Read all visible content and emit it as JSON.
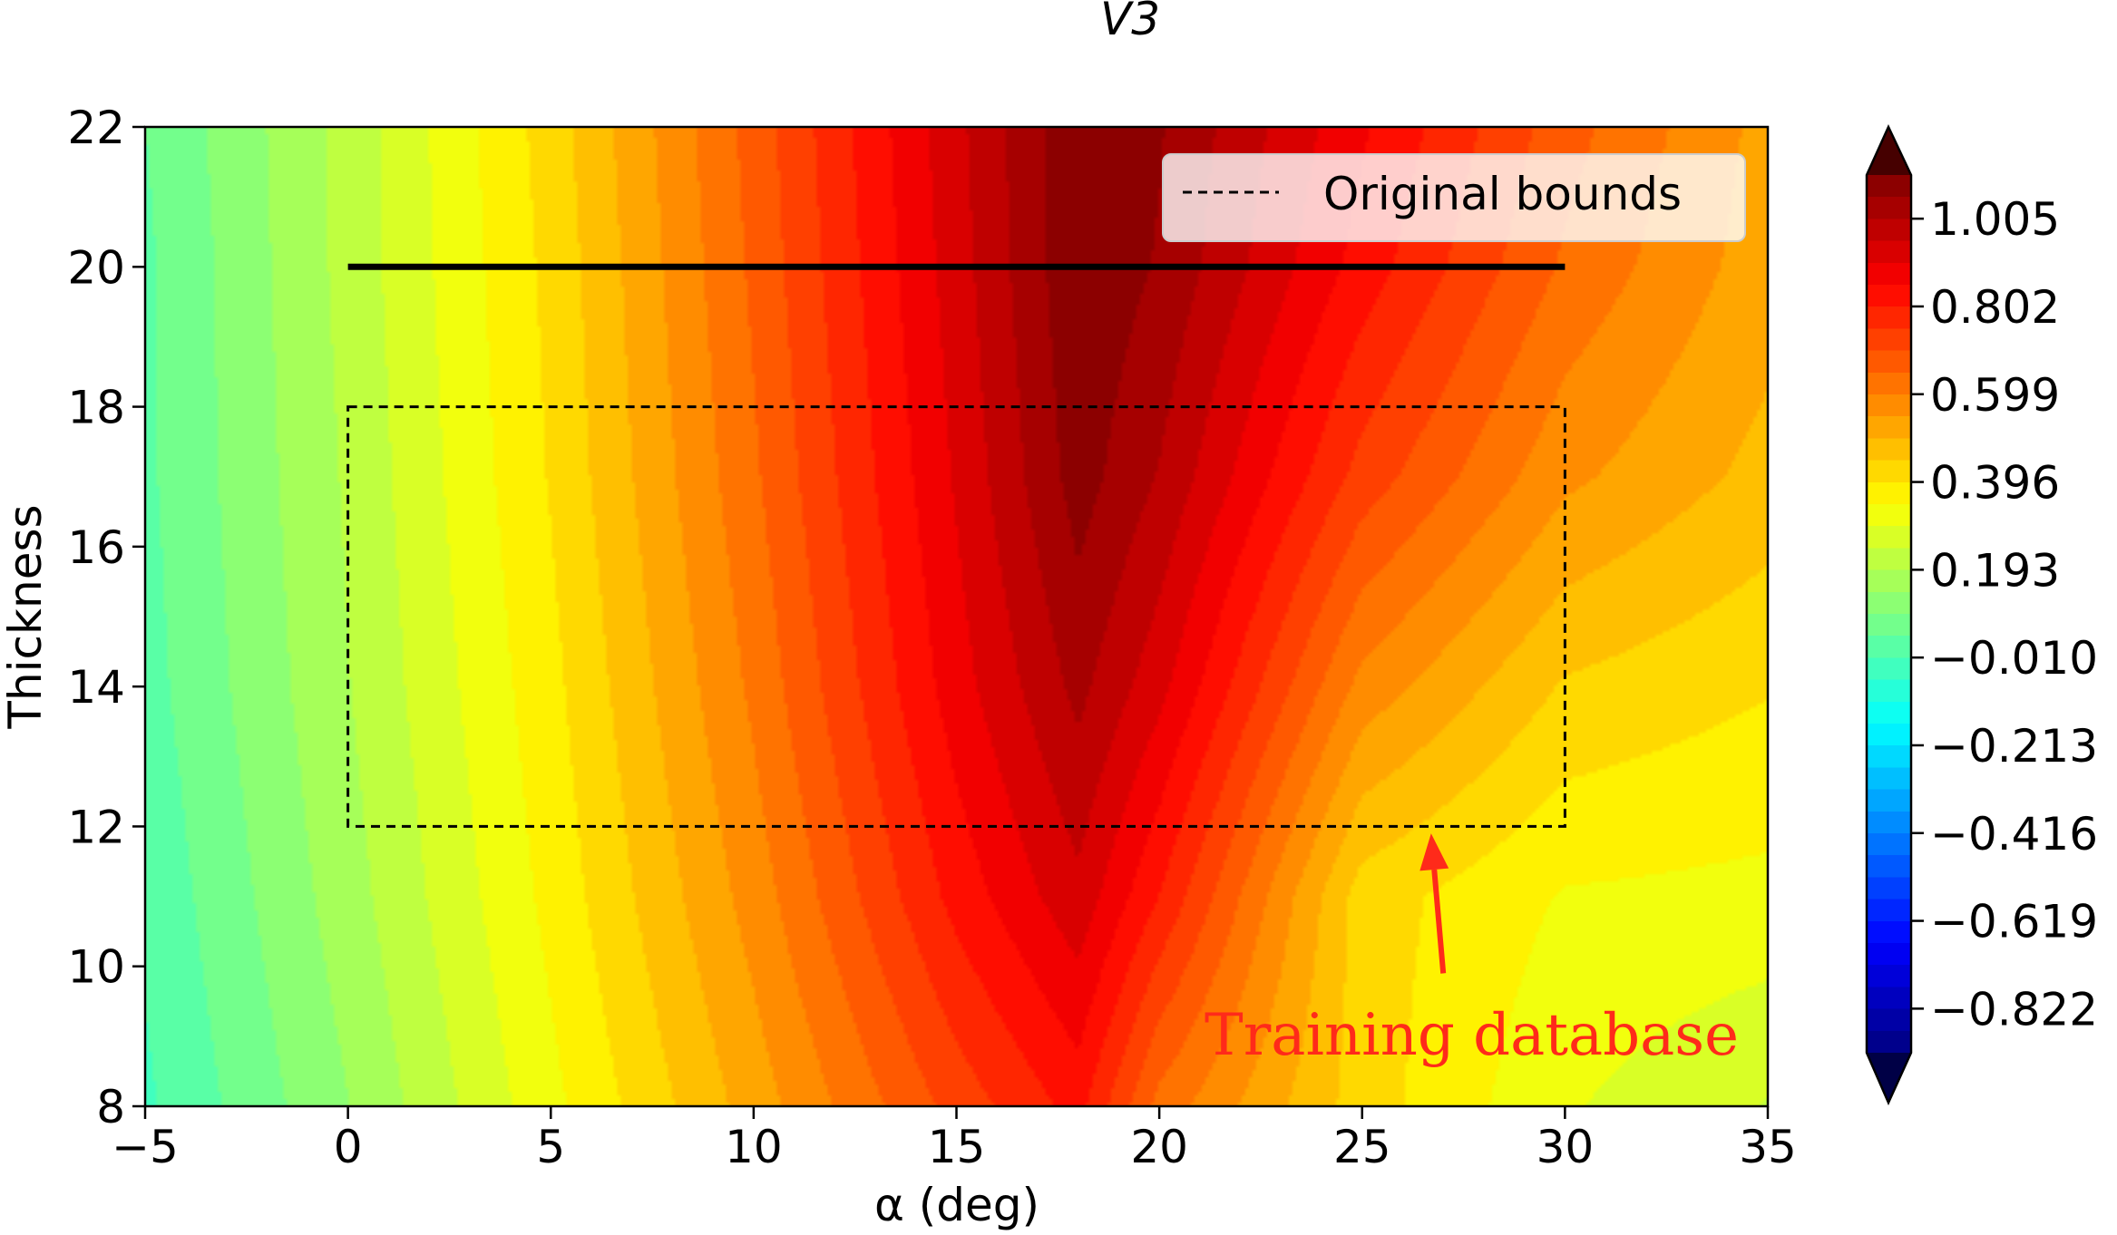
{
  "chart_data": {
    "type": "heatmap",
    "subtype": "filled-contour",
    "title": "V3",
    "xlabel": "α (deg)",
    "ylabel": "Thickness",
    "xlim": [
      -5,
      35
    ],
    "ylim": [
      8,
      22
    ],
    "x_ticks": [
      -5,
      0,
      5,
      10,
      15,
      20,
      25,
      30,
      35
    ],
    "x_tick_labels": [
      "−5",
      "0",
      "5",
      "10",
      "15",
      "20",
      "25",
      "30",
      "35"
    ],
    "y_ticks": [
      8,
      10,
      12,
      14,
      16,
      18,
      20,
      22
    ],
    "y_tick_labels": [
      "8",
      "10",
      "12",
      "14",
      "16",
      "18",
      "20",
      "22"
    ],
    "colormap": "jet",
    "colorbar": {
      "range": [
        -0.924,
        1.106
      ],
      "extend": "both",
      "ticks": [
        1.005,
        0.802,
        0.599,
        0.396,
        0.193,
        -0.01,
        -0.213,
        -0.416,
        -0.619,
        -0.822
      ],
      "tick_labels": [
        "1.005",
        "0.802",
        "0.599",
        "0.396",
        "0.193",
        "−0.010",
        "−0.213",
        "−0.416",
        "−0.619",
        "−0.822"
      ]
    },
    "field_samples": {
      "description_rows": "value at (alpha, thickness)",
      "thickness": [
        8,
        11,
        14,
        17,
        20,
        22
      ],
      "alpha": [
        -5,
        0,
        5,
        10,
        15,
        18,
        20,
        25,
        30,
        35
      ],
      "values": [
        [
          -0.02,
          0.14,
          0.33,
          0.52,
          0.72,
          0.82,
          0.63,
          0.42,
          0.3,
          0.24
        ],
        [
          0.0,
          0.17,
          0.36,
          0.57,
          0.82,
          0.94,
          0.8,
          0.42,
          0.34,
          0.33
        ],
        [
          0.02,
          0.19,
          0.38,
          0.61,
          0.88,
          1.02,
          0.92,
          0.58,
          0.44,
          0.4
        ],
        [
          0.03,
          0.2,
          0.4,
          0.64,
          0.91,
          1.08,
          1.0,
          0.73,
          0.56,
          0.48
        ],
        [
          0.03,
          0.21,
          0.41,
          0.66,
          0.93,
          1.1,
          1.05,
          0.83,
          0.64,
          0.52
        ],
        [
          0.04,
          0.21,
          0.42,
          0.67,
          0.94,
          1.1,
          1.06,
          0.86,
          0.67,
          0.53
        ]
      ]
    },
    "legend": {
      "placement": "top-right",
      "entries": [
        {
          "label": "Original bounds",
          "style": "dashed",
          "color": "#000000"
        }
      ]
    },
    "shapes": [
      {
        "kind": "line",
        "style": "solid",
        "color": "#000000",
        "x": [
          0,
          30
        ],
        "y": [
          20,
          20
        ]
      },
      {
        "kind": "rectangle",
        "style": "dashed",
        "color": "#000000",
        "x": [
          0,
          30
        ],
        "y": [
          12,
          18
        ]
      }
    ],
    "annotations": [
      {
        "text": "Training database",
        "color": "#ff2a1a",
        "arrow_from": [
          27.0,
          9.9
        ],
        "arrow_to": [
          26.7,
          11.9
        ],
        "text_at": [
          27.7,
          9.0
        ]
      }
    ]
  }
}
